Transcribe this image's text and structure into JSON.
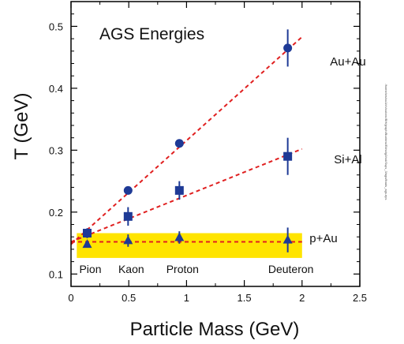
{
  "chart_data": {
    "type": "scatter",
    "title": "AGS Energies",
    "xlabel": "Particle Mass (GeV)",
    "ylabel": "T (GeV)",
    "xlim": [
      0,
      2.5
    ],
    "ylim": [
      0.08,
      0.54
    ],
    "x_ticks": [
      "0",
      "0.5",
      "1",
      "1.5",
      "2",
      "2.5"
    ],
    "y_ticks": [
      "0.1",
      "0.2",
      "0.3",
      "0.4",
      "0.5"
    ],
    "x_tick_values": [
      0,
      0.5,
      1,
      1.5,
      2,
      2.5
    ],
    "y_tick_values": [
      0.1,
      0.2,
      0.3,
      0.4,
      0.5
    ],
    "grid": false,
    "band": {
      "x": [
        0.05,
        2.0
      ],
      "y": [
        0.126,
        0.166
      ],
      "color": "#ffe400"
    },
    "categories": [
      {
        "label": "Pion",
        "x": 0.14
      },
      {
        "label": "Kaon",
        "x": 0.494
      },
      {
        "label": "Proton",
        "x": 0.938
      },
      {
        "label": "Deuteron",
        "x": 1.876
      }
    ],
    "series": [
      {
        "name": "Au+Au",
        "marker": "circle",
        "color": "#1e3a96",
        "points": [
          {
            "x": 0.494,
            "y": 0.235,
            "err": 0
          },
          {
            "x": 0.938,
            "y": 0.311,
            "err": 0
          },
          {
            "x": 1.876,
            "y": 0.465,
            "err": 0.03
          }
        ],
        "fit": [
          [
            0.0,
            0.148
          ],
          [
            2.0,
            0.483
          ]
        ]
      },
      {
        "name": "Si+Al",
        "marker": "square",
        "color": "#1e3a96",
        "points": [
          {
            "x": 0.14,
            "y": 0.166,
            "err": 0.008
          },
          {
            "x": 0.494,
            "y": 0.193,
            "err": 0.015
          },
          {
            "x": 0.938,
            "y": 0.235,
            "err": 0.015
          },
          {
            "x": 1.876,
            "y": 0.29,
            "err": 0.03
          }
        ],
        "fit": [
          [
            0.0,
            0.152
          ],
          [
            2.0,
            0.302
          ]
        ]
      },
      {
        "name": "p+Au",
        "marker": "triangle",
        "color": "#1e3a96",
        "points": [
          {
            "x": 0.14,
            "y": 0.148,
            "err": 0.005
          },
          {
            "x": 0.494,
            "y": 0.154,
            "err": 0.01
          },
          {
            "x": 0.938,
            "y": 0.159,
            "err": 0.01
          },
          {
            "x": 1.876,
            "y": 0.155,
            "err": 0.02
          }
        ],
        "fit": [
          [
            0.0,
            0.152
          ],
          [
            2.0,
            0.152
          ]
        ]
      }
    ],
    "fit_line_color": "#e02020",
    "side_note": "/home/ws/xu1/ch/xu/cnn/BH/graph/Buckins/Ekholg2/ssl/Ssps_3/ags/fbads_ags.eps"
  }
}
